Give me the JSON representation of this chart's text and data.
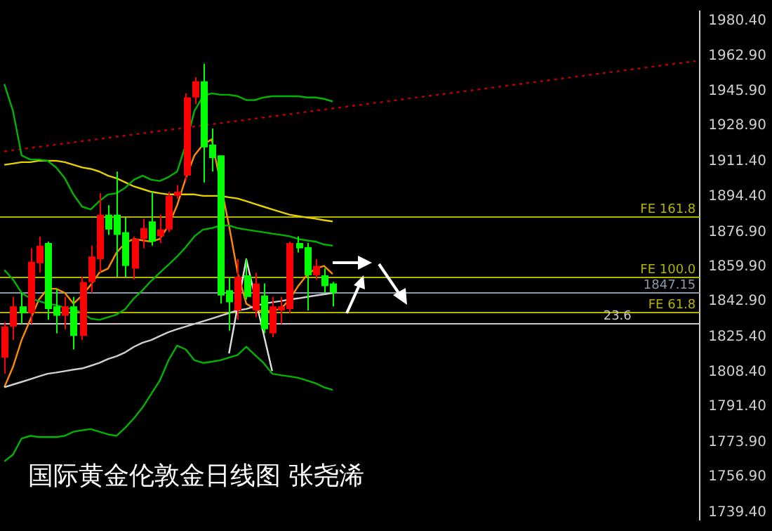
{
  "chart_data": {
    "type": "candlestick",
    "title": "国际黄金伦敦金日线图 张尧浠",
    "categories": [
      null,
      null,
      null,
      null,
      null,
      null,
      null,
      null,
      null,
      null,
      null,
      null,
      null,
      null,
      null,
      null,
      null,
      null,
      null,
      null,
      null,
      null,
      null,
      null,
      null,
      null,
      null,
      null,
      null,
      null,
      null,
      null,
      null,
      null,
      null,
      null,
      null,
      null,
      null,
      null,
      null,
      null,
      null,
      null,
      null,
      null,
      null,
      null,
      null,
      null,
      null,
      null,
      null,
      null,
      null,
      null,
      null,
      null,
      null,
      null,
      null,
      null,
      null,
      null,
      null,
      null,
      null,
      null,
      null,
      null,
      null,
      null,
      null,
      null,
      null,
      null,
      null,
      null,
      null,
      null,
      null
    ],
    "ohlc": [
      [
        1815.4,
        1832.6,
        1807.5,
        1830.6
      ],
      [
        1830.6,
        1845.1,
        1824.0,
        1840.5
      ],
      [
        1840.5,
        1847.1,
        1831.9,
        1837.2
      ],
      [
        1837.2,
        1868.9,
        1831.9,
        1862.3
      ],
      [
        1861.6,
        1874.8,
        1857.0,
        1870.2
      ],
      [
        1871.5,
        1872.2,
        1833.9,
        1839.2
      ],
      [
        1840.5,
        1849.1,
        1827.3,
        1835.9
      ],
      [
        1835.9,
        1845.1,
        1829.3,
        1840.5
      ],
      [
        1840.5,
        1845.1,
        1819.4,
        1826.0
      ],
      [
        1826.0,
        1855.0,
        1824.0,
        1852.4
      ],
      [
        1852.4,
        1870.2,
        1847.1,
        1864.9
      ],
      [
        1863.6,
        1895.9,
        1857.0,
        1885.4
      ],
      [
        1885.4,
        1890.0,
        1875.5,
        1878.1
      ],
      [
        1885.4,
        1906.5,
        1855.0,
        1875.5
      ],
      [
        1876.8,
        1884.0,
        1855.0,
        1860.3
      ],
      [
        1859.0,
        1874.8,
        1853.7,
        1873.5
      ],
      [
        1873.5,
        1883.4,
        1868.9,
        1878.8
      ],
      [
        1882.1,
        1896.6,
        1870.2,
        1872.2
      ],
      [
        1874.8,
        1885.4,
        1871.5,
        1878.1
      ],
      [
        1878.1,
        1896.6,
        1876.8,
        1894.6
      ],
      [
        1894.6,
        1899.9,
        1893.3,
        1896.6
      ],
      [
        1904.5,
        1944.8,
        1901.9,
        1942.8
      ],
      [
        1942.8,
        1952.7,
        1939.5,
        1950.7
      ],
      [
        1950.7,
        1959.3,
        1901.2,
        1918.4
      ],
      [
        1919.7,
        1927.6,
        1906.5,
        1913.1
      ],
      [
        1914.4,
        1914.4,
        1841.8,
        1845.8
      ],
      [
        1848.4,
        1855.0,
        1828.6,
        1842.5
      ],
      [
        1838.5,
        1863.6,
        1833.9,
        1855.0
      ],
      [
        1855.7,
        1863.6,
        1843.8,
        1845.1
      ],
      [
        1838.5,
        1857.0,
        1835.2,
        1851.7
      ],
      [
        1845.8,
        1851.7,
        1827.3,
        1829.3
      ],
      [
        1827.3,
        1845.1,
        1825.3,
        1840.5
      ],
      [
        1838.5,
        1845.1,
        1831.9,
        1840.5
      ],
      [
        1839.2,
        1872.2,
        1837.2,
        1871.5
      ],
      [
        1871.5,
        1874.8,
        1866.9,
        1868.9
      ],
      [
        1869.5,
        1871.5,
        1838.5,
        1855.7
      ],
      [
        1855.7,
        1863.6,
        1853.7,
        1860.3
      ],
      [
        1855.7,
        1859.0,
        1847.1,
        1850.4
      ],
      [
        1851.7,
        1852.4,
        1840.5,
        1847.1
      ],
      null,
      null,
      null,
      null,
      null,
      null,
      null,
      null,
      null,
      null,
      null,
      null,
      null,
      null,
      null,
      null,
      null,
      null,
      null,
      null,
      null,
      null,
      null,
      null,
      null,
      null,
      null,
      null,
      null,
      null,
      null,
      null,
      null,
      null,
      null,
      null,
      null,
      null,
      null,
      null,
      null,
      null
    ],
    "colors": [
      "#ff0000",
      "#ff0000",
      "#00ff00",
      "#ff0000",
      "#ff0000",
      "#00ff00",
      "#00ff00",
      "#ff0000",
      "#00ff00",
      "#ff0000",
      "#ff0000",
      "#ff0000",
      "#00ff00",
      "#00ff00",
      "#00ff00",
      "#ff0000",
      "#ff0000",
      "#00ff00",
      "#ff0000",
      "#ff0000",
      "#ff0000",
      "#ff0000",
      "#ff0000",
      "#00ff00",
      "#00ff00",
      "#00ff00",
      "#00ff00",
      "#ff0000",
      "#00ff00",
      "#ff0000",
      "#00ff00",
      "#ff0000",
      "#ff0000",
      "#ff0000",
      "#00ff00",
      "#00ff00",
      "#ff0000",
      "#00ff00",
      "#00ff00",
      null,
      null,
      null,
      null,
      null,
      null,
      null,
      null,
      null,
      null,
      null,
      null,
      null,
      null,
      null,
      null,
      null,
      null,
      null,
      null,
      null,
      null,
      null,
      null,
      null,
      null,
      null,
      null,
      null,
      null,
      null,
      null,
      null,
      null,
      null,
      null,
      null,
      null,
      null,
      null,
      null,
      null
    ],
    "series": [
      {
        "type": "line",
        "color": "#00b400",
        "values": [
          1949.4,
          1936.2,
          1914.4,
          1912.4,
          1912.4,
          1911.8,
          1908.5,
          1903.2,
          1895.3,
          1889.3,
          1888.0,
          1892.0,
          1895.3,
          1895.9,
          1898.6,
          1902.5,
          1904.5,
          1902.5,
          1901.9,
          1903.8,
          1906.5,
          1919.7,
          1936.2,
          1943.4,
          1944.8,
          1944.1,
          1944.1,
          1943.4,
          1941.5,
          1941.5,
          1942.8,
          1943.4,
          1943.4,
          1943.4,
          1943.4,
          1942.8,
          1942.8,
          1942.1,
          1940.8,
          null,
          null,
          null,
          null,
          null,
          null,
          null,
          null,
          null,
          null,
          null,
          null,
          null,
          null,
          null,
          null,
          null,
          null,
          null,
          null,
          null,
          null,
          null,
          null,
          null,
          null,
          null,
          null,
          null,
          null,
          null,
          null,
          null,
          null,
          null,
          null,
          null,
          null,
          null,
          null,
          null,
          null
        ]
      },
      {
        "type": "line",
        "color": "#00b400",
        "values": [
          1858.3,
          1853.7,
          1847.1,
          1844.4,
          1843.1,
          1841.8,
          1841.1,
          1839.8,
          1839.2,
          1837.2,
          1834.5,
          1833.9,
          1835.2,
          1836.5,
          1839.2,
          1844.4,
          1848.4,
          1853.0,
          1857.0,
          1860.9,
          1864.9,
          1869.5,
          1874.8,
          1878.1,
          1878.8,
          1880.1,
          1880.1,
          1878.8,
          1878.1,
          1877.4,
          1876.8,
          1876.1,
          1875.5,
          1874.8,
          1873.5,
          1872.8,
          1872.2,
          1870.8,
          1870.2,
          null,
          null,
          null,
          null,
          null,
          null,
          null,
          null,
          null,
          null,
          null,
          null,
          null,
          null,
          null,
          null,
          null,
          null,
          null,
          null,
          null,
          null,
          null,
          null,
          null,
          null,
          null,
          null,
          null,
          null,
          null,
          null,
          null,
          null,
          null,
          null,
          null,
          null,
          null,
          null,
          null,
          null
        ]
      },
      {
        "type": "line",
        "color": "#00b400",
        "values": [
          1764.6,
          1767.9,
          1775.8,
          1777.1,
          1776.5,
          1776.5,
          1776.5,
          1777.1,
          1779.1,
          1779.8,
          1780.4,
          1779.1,
          1777.8,
          1777.1,
          1781.1,
          1785.7,
          1791.0,
          1797.6,
          1804.2,
          1814.1,
          1821.3,
          1819.4,
          1814.1,
          1812.8,
          1813.4,
          1814.1,
          1815.4,
          1816.7,
          1820.7,
          1816.7,
          1812.8,
          1807.5,
          1806.8,
          1806.2,
          1805.5,
          1804.2,
          1802.9,
          1800.9,
          1799.6,
          null,
          null,
          null,
          null,
          null,
          null,
          null,
          null,
          null,
          null,
          null,
          null,
          null,
          null,
          null,
          null,
          null,
          null,
          null,
          null,
          null,
          null,
          null,
          null,
          null,
          null,
          null,
          null,
          null,
          null,
          null,
          null,
          null,
          null,
          null,
          null,
          null,
          null,
          null,
          null,
          null,
          null
        ]
      },
      {
        "type": "line",
        "color": "#e6d200",
        "values": [
          1909.8,
          1910.4,
          1911.1,
          1911.1,
          1911.8,
          1911.8,
          1911.8,
          1911.1,
          1909.8,
          1908.5,
          1907.8,
          1906.5,
          1904.5,
          1903.2,
          1901.2,
          1899.2,
          1897.9,
          1896.6,
          1895.9,
          1895.3,
          1895.3,
          1895.3,
          1895.3,
          1894.6,
          1894.6,
          1894.6,
          1893.9,
          1893.3,
          1892.0,
          1890.6,
          1889.3,
          1888.0,
          1886.7,
          1885.4,
          1884.7,
          1884.0,
          1883.4,
          1882.7,
          1882.1,
          null,
          null,
          null,
          null,
          null,
          null,
          null,
          null,
          null,
          null,
          null,
          null,
          null,
          null,
          null,
          null,
          null,
          null,
          null,
          null,
          null,
          null,
          null,
          null,
          null,
          null,
          null,
          null,
          null,
          null,
          null,
          null,
          null,
          null,
          null,
          null,
          null,
          null,
          null,
          null,
          null,
          null
        ]
      },
      {
        "type": "line",
        "color": "#d0d0d0",
        "values": [
          1800.9,
          1802.2,
          1803.5,
          1804.8,
          1806.2,
          1807.5,
          1808.1,
          1808.8,
          1809.5,
          1810.1,
          1811.4,
          1812.8,
          1814.7,
          1816.1,
          1818.0,
          1820.7,
          1822.7,
          1824.0,
          1826.0,
          1827.9,
          1829.3,
          1830.6,
          1831.9,
          1833.2,
          1834.5,
          1835.9,
          1837.2,
          1838.5,
          1839.2,
          1840.5,
          1841.8,
          1842.5,
          1843.1,
          1843.8,
          1844.4,
          1845.1,
          1845.8,
          1846.4,
          1847.1,
          null,
          null,
          null,
          null,
          null,
          null,
          null,
          null,
          null,
          null,
          null,
          null,
          null,
          null,
          null,
          null,
          null,
          null,
          null,
          null,
          null,
          null,
          null,
          null,
          null,
          null,
          null,
          null,
          null,
          null,
          null,
          null,
          null,
          null,
          null,
          null,
          null,
          null,
          null,
          null,
          null,
          null
        ]
      },
      {
        "type": "line",
        "color": "#ff8c00",
        "values": [
          1800.9,
          1810.8,
          1824.0,
          1833.9,
          1843.8,
          1849.1,
          1849.1,
          1847.1,
          1841.8,
          1845.8,
          1851.0,
          1857.0,
          1859.0,
          1866.9,
          1871.5,
          1873.5,
          1872.8,
          1872.2,
          1873.5,
          1880.1,
          1890.0,
          1903.2,
          1914.4,
          1919.7,
          1922.3,
          null,
          1880.1,
          1857.0,
          1841.8,
          1839.2,
          1837.8,
          1838.5,
          1839.2,
          1843.8,
          1850.4,
          1855.7,
          1859.0,
          1860.3,
          1856.3,
          null,
          null,
          null,
          null,
          null,
          null,
          null,
          null,
          null,
          null,
          null,
          null,
          null,
          null,
          null,
          null,
          null,
          null,
          null,
          null,
          null,
          null,
          null,
          null,
          null,
          null,
          null,
          null,
          null,
          null,
          null,
          null,
          null,
          null,
          null,
          null,
          null,
          null,
          null,
          null,
          null,
          null
        ]
      },
      {
        "type": "line",
        "color": "#e0e0e0",
        "values": [
          null,
          null,
          null,
          null,
          null,
          null,
          null,
          null,
          null,
          null,
          null,
          null,
          null,
          null,
          null,
          null,
          null,
          null,
          null,
          null,
          null,
          null,
          null,
          null,
          null,
          null,
          1817.4,
          null,
          1863.6,
          null,
          null,
          1808.8,
          null,
          null,
          null,
          null,
          null,
          null,
          null,
          null,
          null,
          null,
          null,
          null,
          null,
          null,
          null,
          null,
          null,
          null,
          null,
          null,
          null,
          null,
          null,
          null,
          null,
          null,
          null,
          null,
          null,
          null,
          null,
          null,
          null,
          null,
          null,
          null,
          null,
          null,
          null,
          null,
          null,
          null,
          null,
          null,
          null,
          null,
          null,
          null,
          null
        ]
      },
      {
        "type": "line",
        "color": "#c00000",
        "line_style": "dotted",
        "values": [
          1916.4,
          null,
          null,
          null,
          null,
          null,
          null,
          null,
          null,
          null,
          null,
          null,
          null,
          null,
          null,
          null,
          null,
          null,
          null,
          null,
          null,
          null,
          null,
          null,
          null,
          null,
          null,
          null,
          null,
          null,
          null,
          null,
          null,
          null,
          null,
          null,
          null,
          null,
          null,
          null,
          null,
          null,
          null,
          null,
          null,
          null,
          null,
          null,
          null,
          null,
          null,
          null,
          null,
          null,
          null,
          null,
          null,
          null,
          null,
          null,
          null,
          null,
          null,
          null,
          null,
          null,
          null,
          null,
          null,
          null,
          null,
          null,
          null,
          null,
          null,
          null,
          null,
          null,
          null,
          null,
          1960.6
        ]
      }
    ],
    "ref_lines": [
      {
        "axis": "y",
        "value": 1884.7,
        "label": "FE 161.8",
        "color": "#b4b400"
      },
      {
        "axis": "y",
        "value": 1855.2,
        "label": "FE 100.0",
        "color": "#b4b400"
      },
      {
        "axis": "y",
        "value": 1847.15,
        "label": "1847.15",
        "color": "#8a9aa8"
      },
      {
        "axis": "y",
        "value": 1837.6,
        "label": "FE 61.8",
        "color": "#b4b400"
      },
      {
        "axis": "y",
        "value": 1832.6,
        "color": "#c8c8c8"
      }
    ],
    "annotations": [
      {
        "text": "23.6",
        "y": 1832.6
      }
    ],
    "ylim": [
      1736,
      1985
    ],
    "yticks": [
      {
        "value": 1739.4,
        "label": "1739.40"
      },
      {
        "value": 1756.9,
        "label": "1756.90"
      },
      {
        "value": 1773.9,
        "label": "1773.90"
      },
      {
        "value": 1791.4,
        "label": "1791.40"
      },
      {
        "value": 1808.4,
        "label": "1808.40"
      },
      {
        "value": 1825.4,
        "label": "1825.40"
      },
      {
        "value": 1842.9,
        "label": "1842.90"
      },
      {
        "value": 1859.9,
        "label": "1859.90"
      },
      {
        "value": 1876.9,
        "label": "1876.90"
      },
      {
        "value": 1894.4,
        "label": "1894.40"
      },
      {
        "value": 1911.4,
        "label": "1911.40"
      },
      {
        "value": 1928.9,
        "label": "1928.90"
      },
      {
        "value": 1945.9,
        "label": "1945.90"
      },
      {
        "value": 1962.9,
        "label": "1962.90"
      },
      {
        "value": 1980.4,
        "label": "1980.40"
      }
    ],
    "tick_labels": "y",
    "grid": false,
    "legend": false
  }
}
